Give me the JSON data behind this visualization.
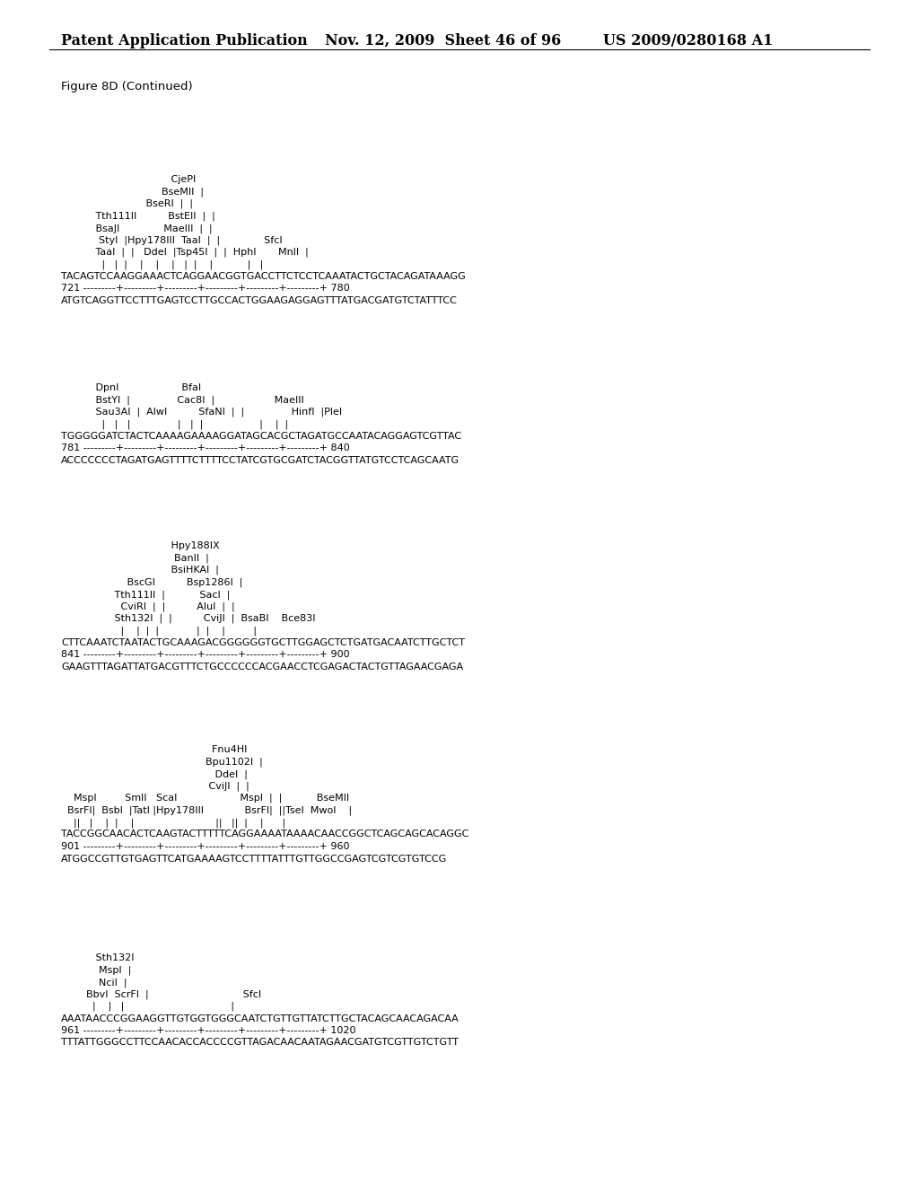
{
  "header_left": "Patent Application Publication",
  "header_mid": "Nov. 12, 2009  Sheet 46 of 96",
  "header_right": "US 2009/0280168 A1",
  "figure_label": "Figure 8D (Continued)",
  "background_color": "#ffffff",
  "text_color": "#000000",
  "blocks": [
    {
      "lines": [
        "                                   CjePI",
        "                                BseMII  |",
        "                           BseRI  |  |",
        "           Tth111II          BstEII  |  |",
        "           BsaJI              MaeIII  |  |",
        "            StyI  |Hpy178III  TaaI  |  |              SfcI",
        "           TaaI  |  |   DdeI  |Tsp45I  |  |  HphI       MnlI  |",
        "             |   |  |    |    |    |   |  |    |           |   |",
        "TACAGTCCAAGGAAACTCAGGAACGGTGACCTTCTCCTCAAATACTGCTACAGATAAAGG",
        "721 ---------+---------+---------+---------+---------+---------+ 780",
        "ATGTCAGGTTCCTTTGAGTCCTTGCCACTGGAAGAGGAGTTTATGACGATGTCTATTTCC"
      ]
    },
    {
      "lines": [
        "           DpnI                    BfaI",
        "           BstYI  |               Cac8I  |                   MaeIII",
        "           Sau3AI  |  AlwI          SfaNI  |  |               HinfI  |PleI",
        "             |   |   |               |   |  |                  |    |  |",
        "TGGGGGATCTACTCAAAAGAAAAGGATAGCACGCTAGATGCCAATACAGGAGTCGTTAC",
        "781 ---------+---------+---------+---------+---------+---------+ 840",
        "ACCCCCCCTAGATGAGTTTTCTTTTCCTATCGTGCGATCTACGGTTATGTCCTCAGCAATG"
      ]
    },
    {
      "lines": [
        "                                   Hpy188IX",
        "                                    BanII  |",
        "                                   BsiHKAI  |",
        "                     BscGI          Bsp1286I  |",
        "                 Tth111II  |           SacI  |",
        "                   CviRI  |  |          AluI  |  |",
        "                 Sth132I  |  |          CviJI  |  BsaBI    Bce83I",
        "                   |    |  |  |            |  |    |         |",
        "CTTCAAATCTAATACTGCAAAGACGGGGGGTGCTTGGAGCTCTGATGACAATCTTGCTCT",
        "841 ---------+---------+---------+---------+---------+---------+ 900",
        "GAAGTTTAGATTATGACGTTTCTGCCCCCCACGAACCTCGAGACTACTGTTAGAACGAGA"
      ]
    },
    {
      "lines": [
        "                                                Fnu4HI",
        "                                              Bpu1102I  |",
        "                                                 DdeI  |",
        "                                               CviJI  |  |",
        "    MspI         SmlI   ScaI                    MspI  |  |           BseMII",
        "  BsrFI|  BsbI  |TatI |Hpy178III             BsrFI|  ||TseI  MwoI    |",
        "    ||   |    |  |    |                          ||   ||  |    |      |",
        "TACCGGCAACACTCAAGTACTTTTTCAGGAAAATAAAACAACCGGCTCAGCAGCACAGGC",
        "901 ---------+---------+---------+---------+---------+---------+ 960",
        "ATGGCCGTTGTGAGTTCATGAAAAGTCCTTTTATTTGTTGGCCGAGTCGTCGTGTCCG"
      ]
    },
    {
      "lines": [
        "           Sth132I",
        "            MspI  |",
        "            NciI  |",
        "        BbvI  ScrFI  |                              SfcI",
        "          |    |   |                                  |",
        "AAATAACCCGGAAGGTTGTGGTGGGCAATCTGTTGTTATCTTGCTACAGCAACAGACAA",
        "961 ---------+---------+---------+---------+---------+---------+ 1020",
        "TTTATTGGGCCTTCCAACACCACCCCGTTAGACAACAATAGAACGATGTCGTTGTCTGTT"
      ]
    }
  ]
}
